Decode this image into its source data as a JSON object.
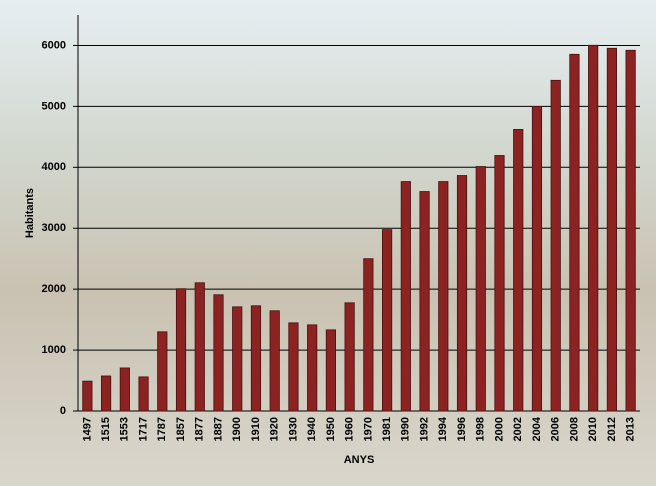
{
  "chart_data": {
    "type": "bar",
    "x_label": "ANYS",
    "y_label": "Habitants",
    "categories": [
      "1497",
      "1515",
      "1553",
      "1717",
      "1787",
      "1857",
      "1877",
      "1887",
      "1900",
      "1910",
      "1920",
      "1930",
      "1940",
      "1950",
      "1960",
      "1970",
      "1981",
      "1990",
      "1992",
      "1994",
      "1996",
      "1998",
      "2000",
      "2002",
      "2004",
      "2006",
      "2008",
      "2010",
      "2012",
      "2013"
    ],
    "values": [
      490,
      575,
      707,
      560,
      1300,
      2007,
      2105,
      1908,
      1710,
      1727,
      1645,
      1447,
      1414,
      1332,
      1776,
      2500,
      2977,
      3766,
      3602,
      3766,
      3865,
      4013,
      4194,
      4622,
      5000,
      5428,
      5855,
      6003,
      5954,
      5921
    ],
    "color": "#8b2323",
    "ylim": [
      0,
      6500
    ],
    "yticks": [
      0,
      1000,
      2000,
      3000,
      4000,
      5000,
      6000
    ],
    "grid": true
  }
}
